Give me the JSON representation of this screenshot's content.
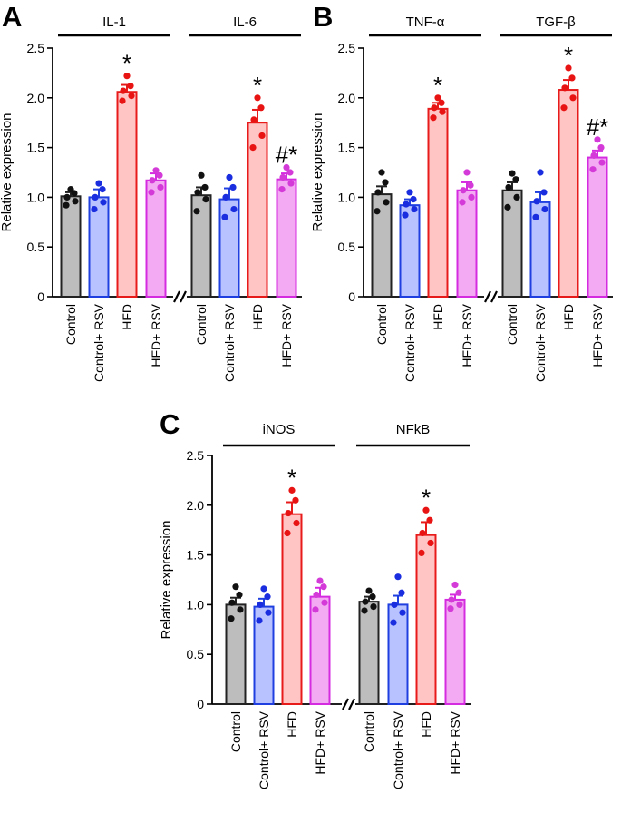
{
  "chart_data": [
    {
      "type": "bar",
      "panel_label": "A",
      "ylabel": "Relative expression",
      "ylim": [
        0,
        2.5
      ],
      "yticks": [
        "0",
        "0.5",
        "1.0",
        "1.5",
        "2.0",
        "2.5"
      ],
      "groups": [
        {
          "title": "IL-1",
          "categories": [
            "Control",
            "Control+ RSV",
            "HFD",
            "HFD+ RSV"
          ],
          "values": [
            1.01,
            1.0,
            2.06,
            1.17
          ],
          "errors": [
            0.04,
            0.08,
            0.07,
            0.07
          ],
          "points": [
            [
              0.92,
              0.96,
              1.0,
              1.04,
              1.08
            ],
            [
              0.88,
              0.95,
              1.0,
              1.08,
              1.14
            ],
            [
              1.97,
              2.02,
              2.07,
              2.12,
              2.22
            ],
            [
              1.05,
              1.1,
              1.17,
              1.22,
              1.27
            ]
          ],
          "annotations": [
            "",
            "",
            "*",
            ""
          ]
        },
        {
          "title": "IL-6",
          "categories": [
            "Control",
            "Control+ RSV",
            "HFD",
            "HFD+ RSV"
          ],
          "values": [
            1.02,
            0.98,
            1.75,
            1.18
          ],
          "errors": [
            0.08,
            0.11,
            0.13,
            0.06
          ],
          "points": [
            [
              0.86,
              0.98,
              1.05,
              1.1,
              1.22
            ],
            [
              0.8,
              0.88,
              1.0,
              1.1,
              1.2
            ],
            [
              1.5,
              1.62,
              1.78,
              1.9,
              2.0
            ],
            [
              1.08,
              1.14,
              1.2,
              1.25,
              1.3
            ]
          ],
          "annotations": [
            "",
            "",
            "*",
            "#*"
          ]
        }
      ]
    },
    {
      "type": "bar",
      "panel_label": "B",
      "ylabel": "Relative expression",
      "ylim": [
        0,
        2.5
      ],
      "yticks": [
        "0",
        "0.5",
        "1.0",
        "1.5",
        "2.0",
        "2.5"
      ],
      "groups": [
        {
          "title": "TNF-α",
          "categories": [
            "Control",
            "Control+ RSV",
            "HFD",
            "HFD+ RSV"
          ],
          "values": [
            1.03,
            0.92,
            1.89,
            1.07
          ],
          "errors": [
            0.08,
            0.06,
            0.06,
            0.08
          ],
          "points": [
            [
              0.86,
              0.95,
              1.05,
              1.15,
              1.25
            ],
            [
              0.82,
              0.88,
              0.93,
              0.98,
              1.05
            ],
            [
              1.8,
              1.86,
              1.9,
              1.95,
              2.0
            ],
            [
              0.95,
              1.0,
              1.07,
              1.12,
              1.25
            ]
          ],
          "annotations": [
            "",
            "",
            "*",
            ""
          ]
        },
        {
          "title": "TGF-β",
          "categories": [
            "Control",
            "Control+ RSV",
            "HFD",
            "HFD+ RSV"
          ],
          "values": [
            1.07,
            0.95,
            2.08,
            1.4
          ],
          "errors": [
            0.08,
            0.1,
            0.1,
            0.07
          ],
          "points": [
            [
              0.9,
              1.0,
              1.1,
              1.18,
              1.24
            ],
            [
              0.8,
              0.88,
              0.96,
              1.05,
              1.25
            ],
            [
              1.9,
              2.0,
              2.1,
              2.2,
              2.3
            ],
            [
              1.28,
              1.35,
              1.42,
              1.5,
              1.58
            ]
          ],
          "annotations": [
            "",
            "",
            "*",
            "#*"
          ]
        }
      ]
    },
    {
      "type": "bar",
      "panel_label": "C",
      "ylabel": "Relative expression",
      "ylim": [
        0,
        2.5
      ],
      "yticks": [
        "0",
        "0.5",
        "1.0",
        "1.5",
        "2.0",
        "2.5"
      ],
      "groups": [
        {
          "title": "iNOS",
          "categories": [
            "Control",
            "Control+ RSV",
            "HFD",
            "HFD+ RSV"
          ],
          "values": [
            1.0,
            0.98,
            1.91,
            1.08
          ],
          "errors": [
            0.07,
            0.08,
            0.12,
            0.09
          ],
          "points": [
            [
              0.86,
              0.95,
              1.02,
              1.1,
              1.18
            ],
            [
              0.84,
              0.92,
              1.0,
              1.08,
              1.16
            ],
            [
              1.72,
              1.82,
              1.92,
              2.05,
              2.15
            ],
            [
              0.95,
              1.02,
              1.1,
              1.18,
              1.24
            ]
          ],
          "annotations": [
            "",
            "",
            "*",
            ""
          ]
        },
        {
          "title": "NFkB",
          "categories": [
            "Control",
            "Control+ RSV",
            "HFD",
            "HFD+ RSV"
          ],
          "values": [
            1.03,
            1.0,
            1.7,
            1.05
          ],
          "errors": [
            0.05,
            0.09,
            0.13,
            0.05
          ],
          "points": [
            [
              0.94,
              0.98,
              1.03,
              1.08,
              1.14
            ],
            [
              0.82,
              0.92,
              1.0,
              1.12,
              1.28
            ],
            [
              1.52,
              1.62,
              1.72,
              1.85,
              1.95
            ],
            [
              0.96,
              1.0,
              1.05,
              1.12,
              1.2
            ]
          ],
          "annotations": [
            "",
            "",
            "*",
            ""
          ]
        }
      ]
    }
  ],
  "colors": {
    "bar_fills": [
      "#bdbdbd",
      "#b8c2ff",
      "#ffc4c4",
      "#f3aaf3"
    ],
    "bar_strokes": [
      "#222222",
      "#1f3fe0",
      "#e81b1b",
      "#d52be0"
    ],
    "point_colors": [
      "#111111",
      "#1a2ee0",
      "#e81414",
      "#d43ad8"
    ],
    "axis": "#000000"
  }
}
